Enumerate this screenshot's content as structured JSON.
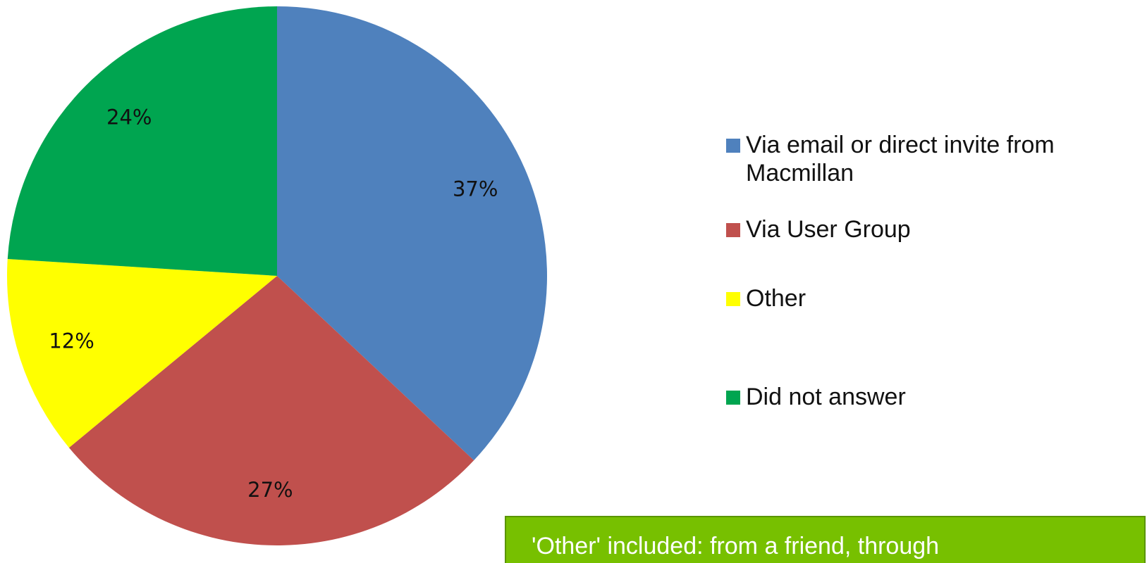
{
  "chart_data": {
    "type": "pie",
    "categories": [
      "Via email or direct invite from Macmillan",
      "Via User Group",
      "Other",
      "Did not answer"
    ],
    "values": [
      37,
      27,
      12,
      24
    ],
    "value_labels": [
      "37%",
      "27%",
      "12%",
      "24%"
    ],
    "colors": [
      "#4f81bd",
      "#c0504d",
      "#ffff00",
      "#00a550"
    ],
    "legend": "right",
    "annotation": "'Other' included: from a friend, through"
  }
}
